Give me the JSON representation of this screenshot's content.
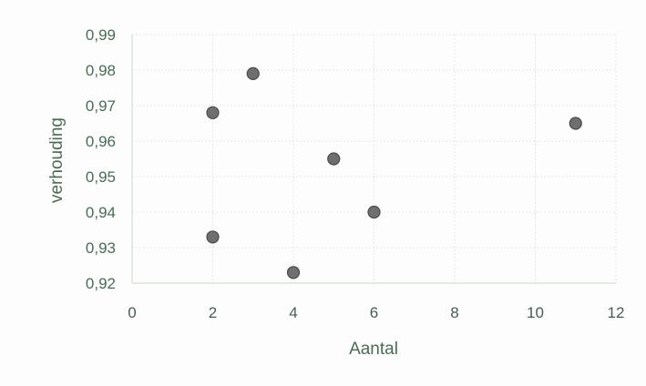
{
  "chart_data": {
    "type": "scatter",
    "title": "",
    "xlabel": "Aantal",
    "ylabel": "verhouding",
    "xlim": [
      0,
      12
    ],
    "ylim": [
      0.92,
      0.99
    ],
    "x_ticks": [
      0,
      2,
      4,
      6,
      8,
      10,
      12
    ],
    "x_tick_labels": [
      "0",
      "2",
      "4",
      "6",
      "8",
      "10",
      "12"
    ],
    "y_ticks": [
      0.92,
      0.93,
      0.94,
      0.95,
      0.96,
      0.97,
      0.98,
      0.99
    ],
    "y_tick_labels": [
      "0,92",
      "0,93",
      "0,94",
      "0,95",
      "0,96",
      "0,97",
      "0,98",
      "0,99"
    ],
    "grid": true,
    "legend": "none",
    "marker_color": "#6f6f6f",
    "points": [
      {
        "x": 2,
        "y": 0.968
      },
      {
        "x": 2,
        "y": 0.933
      },
      {
        "x": 3,
        "y": 0.979
      },
      {
        "x": 4,
        "y": 0.923
      },
      {
        "x": 5,
        "y": 0.955
      },
      {
        "x": 6,
        "y": 0.94
      },
      {
        "x": 11,
        "y": 0.965
      }
    ]
  }
}
